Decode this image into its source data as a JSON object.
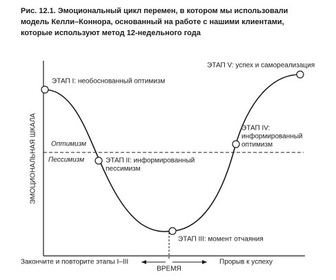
{
  "title": {
    "lines": [
      "Рис. 12.1. Эмоциональный цикл перемен, в котором мы использовали",
      "модель Келли–Коннора, основанный на работе с нашими клиентами,",
      "которые используют метод 12-недельного года"
    ]
  },
  "y_axis_label": "ЭМОЦИОНАЛЬНАЯ ШКАЛА",
  "threshold_labels": {
    "above": "Оптимизм",
    "below": "Пессимизм"
  },
  "stages": [
    {
      "lines": [
        "ЭТАП I: необоснованный оптимизм"
      ]
    },
    {
      "lines": [
        "ЭТАП II: информированный",
        "пессимизм"
      ]
    },
    {
      "lines": [
        "ЭТАП III: момент отчаяния"
      ]
    },
    {
      "lines": [
        "ЭТАП IV:",
        "информированный",
        "оптимизм"
      ]
    },
    {
      "lines": [
        "ЭТАП V: успех и самореализация"
      ]
    }
  ],
  "x_axis": {
    "left": "Закончите и повторите этапы I–III",
    "center": "ВРЕМЯ",
    "right": "Прорыв к успеху"
  }
}
